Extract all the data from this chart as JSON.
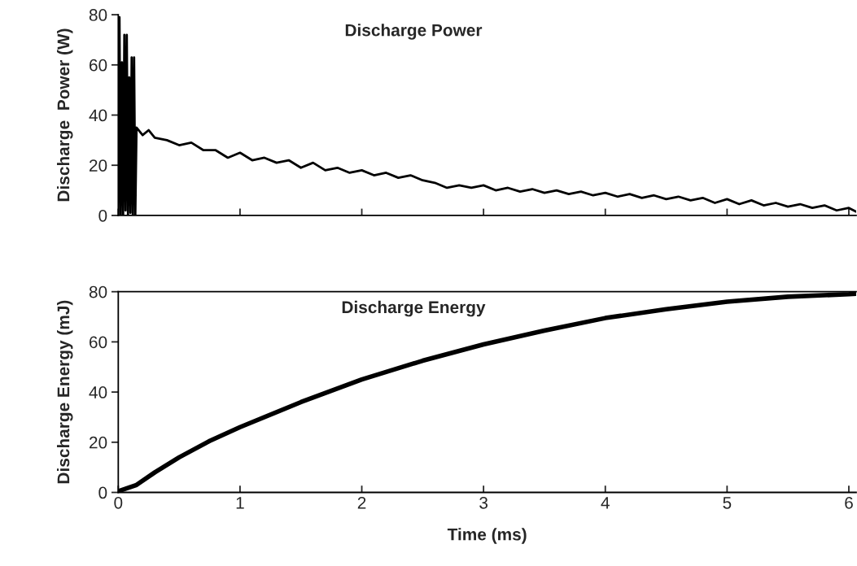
{
  "chart_data": [
    {
      "type": "line",
      "title": "Discharge Power",
      "ylabel": "Discharge  Power (W)",
      "xlim": [
        0,
        6.06
      ],
      "xticks": [
        {
          "value": 0,
          "label": null
        },
        {
          "value": 1,
          "label": null
        },
        {
          "value": 2,
          "label": null
        },
        {
          "value": 3,
          "label": null
        },
        {
          "value": 4,
          "label": null
        },
        {
          "value": 5,
          "label": null
        },
        {
          "value": 6,
          "label": null
        }
      ],
      "ylim": [
        0,
        80
      ],
      "yticks": [
        0,
        20,
        40,
        60,
        80
      ],
      "tick_labels": "y",
      "grid": false,
      "legend": false,
      "series": [
        {
          "color": "#000000",
          "x": [
            0.0,
            0.01,
            0.02,
            0.03,
            0.04,
            0.05,
            0.06,
            0.07,
            0.08,
            0.09,
            0.1,
            0.11,
            0.12,
            0.13,
            0.14,
            0.15,
            0.2,
            0.25,
            0.3,
            0.4,
            0.5,
            0.6,
            0.7,
            0.8,
            0.9,
            1.0,
            1.1,
            1.2,
            1.3,
            1.4,
            1.5,
            1.6,
            1.7,
            1.8,
            1.9,
            2.0,
            2.1,
            2.2,
            2.3,
            2.4,
            2.5,
            2.6,
            2.7,
            2.8,
            2.9,
            3.0,
            3.1,
            3.2,
            3.3,
            3.4,
            3.5,
            3.6,
            3.7,
            3.8,
            3.9,
            4.0,
            4.1,
            4.2,
            4.3,
            4.4,
            4.5,
            4.6,
            4.7,
            4.8,
            4.9,
            5.0,
            5.1,
            5.2,
            5.3,
            5.4,
            5.5,
            5.6,
            5.7,
            5.8,
            5.9,
            6.0,
            6.06
          ],
          "values": [
            0,
            79,
            0,
            61,
            0,
            72,
            2,
            72,
            0,
            55,
            1,
            63,
            0,
            63,
            0,
            35,
            32,
            34,
            31,
            30,
            28,
            29,
            26,
            26,
            23,
            25,
            22,
            23,
            21,
            22,
            19,
            21,
            18,
            19,
            17,
            18,
            16,
            17,
            15,
            16,
            14,
            13,
            11,
            12,
            11,
            12,
            10,
            11,
            9.5,
            10.5,
            9,
            10,
            8.5,
            9.5,
            8,
            9,
            7.5,
            8.5,
            7,
            8,
            6.5,
            7.5,
            6,
            7,
            5,
            6.5,
            4.5,
            6,
            4,
            5,
            3.5,
            4.5,
            3,
            4,
            2,
            3,
            1.5
          ]
        }
      ]
    },
    {
      "type": "line",
      "title": "Discharge Energy",
      "xlabel": "Time (ms)",
      "ylabel": "Discharge Energy (mJ)",
      "xlim": [
        0,
        6.06
      ],
      "xticks": [
        0,
        1,
        2,
        3,
        4,
        5,
        6
      ],
      "ylim": [
        0,
        80
      ],
      "yticks": [
        0,
        20,
        40,
        60,
        80
      ],
      "grid": false,
      "legend": false,
      "series": [
        {
          "color": "#000000",
          "x": [
            0,
            0.15,
            0.3,
            0.5,
            0.75,
            1,
            1.5,
            2,
            2.5,
            3,
            3.5,
            4,
            4.5,
            5,
            5.5,
            6,
            6.06
          ],
          "values": [
            0.5,
            3,
            8,
            14,
            20.5,
            26,
            36,
            45,
            52.5,
            59,
            64.5,
            69.5,
            73,
            76,
            78,
            79,
            79.2
          ]
        }
      ]
    }
  ]
}
